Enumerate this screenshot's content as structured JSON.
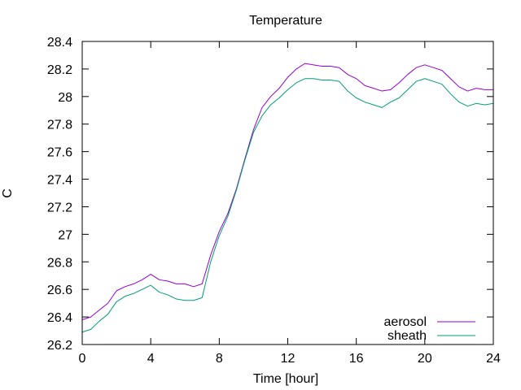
{
  "chart_data": {
    "type": "line",
    "title": "Temperature",
    "xlabel": "Time [hour]",
    "ylabel": "C",
    "xlim": [
      0,
      24
    ],
    "ylim": [
      26.2,
      28.4
    ],
    "xticks": [
      0,
      4,
      8,
      12,
      16,
      20,
      24
    ],
    "yticks": [
      26.2,
      26.4,
      26.6,
      26.8,
      27,
      27.2,
      27.4,
      27.6,
      27.8,
      28,
      28.2,
      28.4
    ],
    "xtick_labels": [
      "0",
      "4",
      "8",
      "12",
      "16",
      "20",
      "24"
    ],
    "ytick_labels": [
      "26.2",
      "26.4",
      "26.6",
      "26.8",
      "27",
      "27.2",
      "27.4",
      "27.6",
      "27.8",
      "28",
      "28.2",
      "28.4"
    ],
    "grid": false,
    "legend_position": "bottom-right",
    "series": [
      {
        "name": "aerosol",
        "color": "#9400d3",
        "x": [
          0,
          0.5,
          1,
          1.5,
          2,
          2.5,
          3,
          3.5,
          4,
          4.5,
          5,
          5.5,
          6,
          6.5,
          7,
          7.5,
          8,
          8.5,
          9,
          9.5,
          10,
          10.5,
          11,
          11.5,
          12,
          12.5,
          13,
          13.5,
          14,
          14.5,
          15,
          15.5,
          16,
          16.5,
          17,
          17.5,
          18,
          18.5,
          19,
          19.5,
          20,
          20.5,
          21,
          21.5,
          22,
          22.5,
          23,
          23.5,
          24
        ],
        "values": [
          26.38,
          26.4,
          26.45,
          26.5,
          26.59,
          26.62,
          26.64,
          26.67,
          26.71,
          26.67,
          26.66,
          26.64,
          26.64,
          26.62,
          26.64,
          26.85,
          27.02,
          27.15,
          27.33,
          27.55,
          27.76,
          27.92,
          28.0,
          28.06,
          28.14,
          28.2,
          28.24,
          28.23,
          28.22,
          28.22,
          28.21,
          28.16,
          28.13,
          28.08,
          28.06,
          28.04,
          28.05,
          28.1,
          28.16,
          28.21,
          28.23,
          28.21,
          28.19,
          28.13,
          28.07,
          28.04,
          28.06,
          28.05,
          28.05
        ]
      },
      {
        "name": "sheath",
        "color": "#009e73",
        "x": [
          0,
          0.5,
          1,
          1.5,
          2,
          2.5,
          3,
          3.5,
          4,
          4.5,
          5,
          5.5,
          6,
          6.5,
          7,
          7.5,
          8,
          8.5,
          9,
          9.5,
          10,
          10.5,
          11,
          11.5,
          12,
          12.5,
          13,
          13.5,
          14,
          14.5,
          15,
          15.5,
          16,
          16.5,
          17,
          17.5,
          18,
          18.5,
          19,
          19.5,
          20,
          20.5,
          21,
          21.5,
          22,
          22.5,
          23,
          23.5,
          24
        ],
        "values": [
          26.29,
          26.31,
          26.37,
          26.42,
          26.51,
          26.55,
          26.57,
          26.6,
          26.63,
          26.58,
          26.56,
          26.53,
          26.52,
          26.52,
          26.54,
          26.8,
          26.99,
          27.13,
          27.32,
          27.54,
          27.74,
          27.86,
          27.94,
          27.99,
          28.05,
          28.1,
          28.13,
          28.13,
          28.12,
          28.12,
          28.11,
          28.04,
          27.99,
          27.96,
          27.94,
          27.92,
          27.96,
          27.99,
          28.05,
          28.11,
          28.13,
          28.11,
          28.09,
          28.02,
          27.96,
          27.93,
          27.95,
          27.94,
          27.95
        ]
      }
    ]
  }
}
